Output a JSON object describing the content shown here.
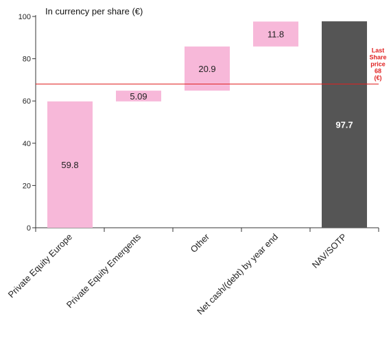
{
  "chart_data": {
    "type": "waterfall",
    "title": "In currency per share (€)",
    "categories": [
      "Private Equity Europe",
      "Private Equity Emergents",
      "Other",
      "Net cash/(debt) by year end",
      "NAV/SOTP"
    ],
    "bars": [
      {
        "label": "59.8",
        "base": 0,
        "value": 59.8,
        "kind": "increment"
      },
      {
        "label": "5.09",
        "base": 59.8,
        "value": 5.09,
        "kind": "increment"
      },
      {
        "label": "20.9",
        "base": 64.89,
        "value": 20.9,
        "kind": "increment"
      },
      {
        "label": "11.8",
        "base": 85.79,
        "value": 11.8,
        "kind": "increment"
      },
      {
        "label": "97.7",
        "base": 0,
        "value": 97.7,
        "kind": "total"
      }
    ],
    "y_ticks": [
      0,
      20,
      40,
      60,
      80,
      100
    ],
    "ylim": [
      0,
      100
    ],
    "reference_line": {
      "value": 68,
      "label_lines": [
        "Last",
        "Share",
        "price",
        "68",
        "(€)"
      ]
    },
    "colors": {
      "increment": "#f7b8d9",
      "total": "#555555",
      "reference": "#e02020",
      "axis": "#333333",
      "increment_label": "#222222",
      "total_label": "#ffffff"
    }
  }
}
